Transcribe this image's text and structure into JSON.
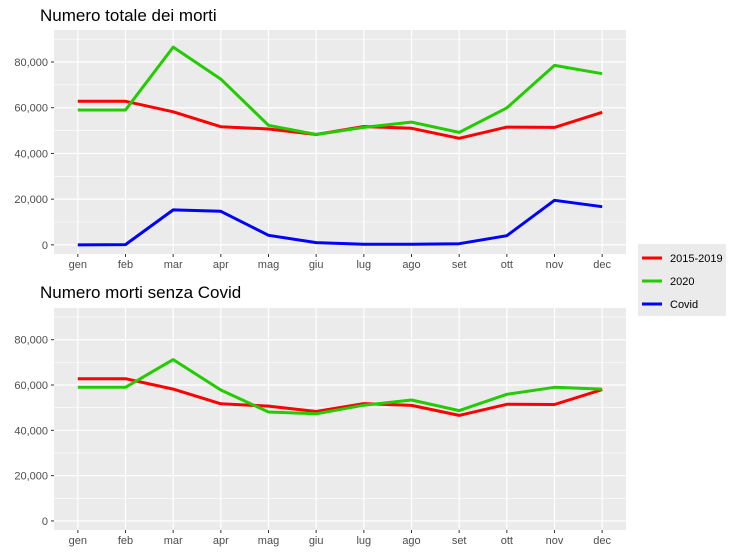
{
  "colors": {
    "panel_bg": "#EBEBEB",
    "grid": "#FFFFFF",
    "series_2015_2019": "#FF0000",
    "series_2020": "#22CC00",
    "series_covid": "#0000FF"
  },
  "legend": {
    "placement": "right",
    "entries": [
      {
        "label": "2015-2019",
        "color": "#FF0000"
      },
      {
        "label": "2020",
        "color": "#22CC00"
      },
      {
        "label": "Covid",
        "color": "#0000FF"
      }
    ]
  },
  "chart_data": [
    {
      "type": "line",
      "title": "Numero totale dei morti",
      "xlabel": "",
      "ylabel": "",
      "categories": [
        "gen",
        "feb",
        "mar",
        "apr",
        "mag",
        "giu",
        "lug",
        "ago",
        "set",
        "ott",
        "nov",
        "dec"
      ],
      "yticks": [
        0,
        20000,
        40000,
        60000,
        80000
      ],
      "ytick_labels": [
        "0",
        "20,000",
        "40,000",
        "60,000",
        "80,000"
      ],
      "ylim": [
        -4000,
        94000
      ],
      "grid": true,
      "series": [
        {
          "name": "2015-2019",
          "color": "#FF0000",
          "values": [
            62800,
            62800,
            58200,
            51700,
            50700,
            48300,
            51800,
            51000,
            46600,
            51500,
            51400,
            58000
          ]
        },
        {
          "name": "2020",
          "color": "#22CC00",
          "values": [
            59000,
            59000,
            86500,
            72500,
            52300,
            48300,
            51400,
            53700,
            49200,
            59900,
            78500,
            74900
          ]
        },
        {
          "name": "Covid",
          "color": "#0000FF",
          "values": [
            0,
            100,
            15300,
            14700,
            4200,
            1000,
            300,
            300,
            500,
            4000,
            19500,
            16700
          ]
        }
      ]
    },
    {
      "type": "line",
      "title": "Numero morti senza Covid",
      "xlabel": "",
      "ylabel": "",
      "categories": [
        "gen",
        "feb",
        "mar",
        "apr",
        "mag",
        "giu",
        "lug",
        "ago",
        "set",
        "ott",
        "nov",
        "dec"
      ],
      "yticks": [
        0,
        20000,
        40000,
        60000,
        80000
      ],
      "ytick_labels": [
        "0",
        "20,000",
        "40,000",
        "60,000",
        "80,000"
      ],
      "ylim": [
        -4000,
        94000
      ],
      "grid": true,
      "series": [
        {
          "name": "2015-2019",
          "color": "#FF0000",
          "values": [
            62800,
            62800,
            58200,
            51700,
            50700,
            48300,
            51800,
            51000,
            46600,
            51500,
            51400,
            58000
          ]
        },
        {
          "name": "2020",
          "color": "#22CC00",
          "values": [
            59000,
            59000,
            71200,
            57800,
            48100,
            47300,
            51100,
            53400,
            48700,
            55900,
            59000,
            58200
          ]
        }
      ]
    }
  ]
}
